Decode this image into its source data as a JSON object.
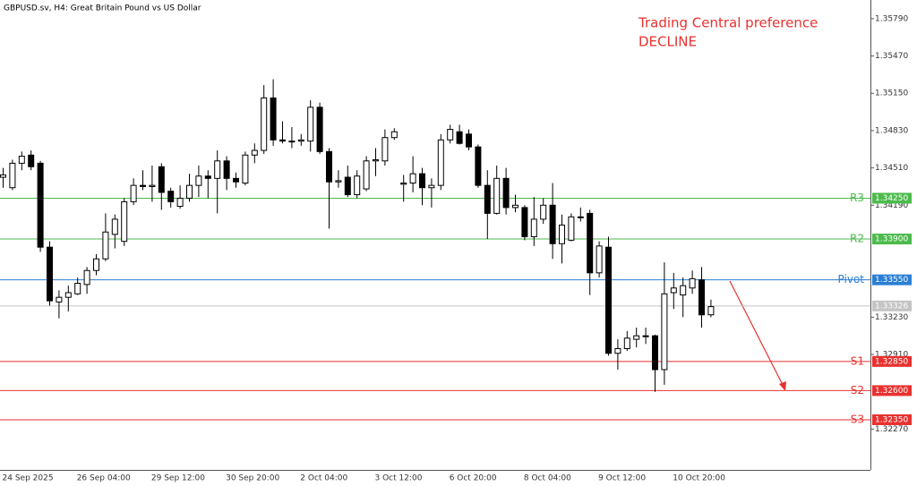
{
  "chart_data": {
    "type": "candlestick",
    "title": "GBPUSD.sv, H4:  Great Britain Pound vs US Dollar",
    "annotation": [
      "Trading Central preference",
      "DECLINE"
    ],
    "annotation_color": "#e8312f",
    "up_color": "#ffffff",
    "down_color": "#000000",
    "categories": [
      "24 Sep 2025",
      null,
      null,
      null,
      null,
      null,
      null,
      null,
      "26 Sep 04:00",
      null,
      null,
      null,
      null,
      null,
      null,
      null,
      "29 Sep 12:00",
      null,
      null,
      null,
      null,
      null,
      null,
      null,
      "30 Sep 20:00",
      null,
      null,
      null,
      null,
      null,
      null,
      null,
      "2 Oct 04:00",
      null,
      null,
      null,
      null,
      null,
      null,
      null,
      "3 Oct 12:00",
      null,
      null,
      null,
      null,
      null,
      null,
      null,
      "6 Oct 20:00",
      null,
      null,
      null,
      null,
      null,
      null,
      null,
      "8 Oct 04:00",
      null,
      null,
      null,
      null,
      null,
      null,
      null,
      "9 Oct 12:00",
      null,
      null,
      null,
      null,
      null,
      null,
      null,
      "10 Oct 20:00",
      null,
      null,
      null,
      null
    ],
    "open": [
      1.3443,
      1.3434,
      1.3455,
      1.3462,
      1.3455,
      1.3383,
      1.3336,
      1.334,
      1.3343,
      1.3351,
      1.3363,
      1.3373,
      1.3394,
      1.3388,
      1.3422,
      1.3436,
      1.3435,
      1.3452,
      1.3431,
      1.3418,
      1.3425,
      1.3436,
      1.3444,
      1.3442,
      1.3457,
      1.3442,
      1.3438,
      1.3462,
      1.3466,
      1.3511,
      1.3475,
      1.3474,
      1.3474,
      1.3474,
      1.3503,
      1.3465,
      1.3439,
      1.3443,
      1.3428,
      1.3433,
      1.3457,
      1.3457,
      1.3477,
      1.3437,
      1.3438,
      1.3446,
      1.3434,
      1.3436,
      1.3475,
      1.3482,
      1.348,
      1.3469,
      1.3436,
      1.3412,
      1.3442,
      1.3417,
      1.3417,
      1.3392,
      1.3407,
      1.3419,
      1.3386,
      1.3389,
      1.3409,
      1.3412,
      1.3361,
      1.3383,
      1.3292,
      1.3296,
      1.3304,
      1.3307,
      1.3307,
      1.3278,
      1.3344,
      1.3342,
      1.3348,
      1.3355,
      1.3325
    ],
    "high": [
      1.3451,
      1.3458,
      1.3465,
      1.3466,
      1.3457,
      1.3388,
      1.3346,
      1.335,
      1.3357,
      1.3366,
      1.3377,
      1.3412,
      1.3411,
      1.3425,
      1.3442,
      1.3449,
      1.3453,
      1.3455,
      1.3434,
      1.3436,
      1.3446,
      1.3453,
      1.3449,
      1.3466,
      1.3461,
      1.3447,
      1.3465,
      1.3472,
      1.3522,
      1.3527,
      1.3491,
      1.3486,
      1.348,
      1.3509,
      1.3507,
      1.3468,
      1.3449,
      1.3453,
      1.3449,
      1.3461,
      1.3468,
      1.3484,
      1.3485,
      1.3445,
      1.3461,
      1.3451,
      1.3442,
      1.348,
      1.3488,
      1.3488,
      1.3484,
      1.3471,
      1.3449,
      1.3453,
      1.3451,
      1.3428,
      1.3419,
      1.3426,
      1.3425,
      1.3438,
      1.3411,
      1.3412,
      1.3417,
      1.3415,
      1.3388,
      1.3392,
      1.3304,
      1.3311,
      1.3314,
      1.3314,
      1.3308,
      1.337,
      1.3361,
      1.3357,
      1.3363,
      1.3366,
      1.3338
    ],
    "low": [
      1.3434,
      1.3432,
      1.3449,
      1.3449,
      1.3379,
      1.3333,
      1.3322,
      1.3328,
      1.3342,
      1.3343,
      1.3359,
      1.3371,
      1.3382,
      1.3384,
      1.3419,
      1.3432,
      1.3422,
      1.3415,
      1.3417,
      1.3416,
      1.3422,
      1.3426,
      1.3425,
      1.3412,
      1.3432,
      1.3434,
      1.3436,
      1.3455,
      1.3463,
      1.347,
      1.3472,
      1.3468,
      1.347,
      1.3465,
      1.3463,
      1.3399,
      1.3434,
      1.3426,
      1.3425,
      1.3431,
      1.3444,
      1.3453,
      1.3475,
      1.3422,
      1.343,
      1.3419,
      1.3417,
      1.3432,
      1.3472,
      1.3471,
      1.3466,
      1.3434,
      1.339,
      1.3411,
      1.3411,
      1.3413,
      1.3389,
      1.3384,
      1.3403,
      1.3373,
      1.3369,
      1.3388,
      1.3405,
      1.3342,
      1.3357,
      1.329,
      1.3278,
      1.3294,
      1.3297,
      1.33,
      1.3259,
      1.3265,
      1.333,
      1.3323,
      1.3343,
      1.3314,
      1.3323
    ],
    "close": [
      1.3445,
      1.3455,
      1.3461,
      1.3452,
      1.3383,
      1.3337,
      1.334,
      1.3344,
      1.3352,
      1.3363,
      1.3373,
      1.3396,
      1.3407,
      1.3422,
      1.3436,
      1.3435,
      1.3436,
      1.343,
      1.3422,
      1.3425,
      1.3436,
      1.3444,
      1.3442,
      1.3457,
      1.3442,
      1.3439,
      1.3462,
      1.3466,
      1.3511,
      1.3475,
      1.3474,
      1.3474,
      1.3475,
      1.3503,
      1.3465,
      1.3439,
      1.344,
      1.3428,
      1.3444,
      1.3457,
      1.3458,
      1.3477,
      1.3482,
      1.3438,
      1.3446,
      1.3434,
      1.3436,
      1.3475,
      1.3484,
      1.3472,
      1.3469,
      1.3436,
      1.3412,
      1.3442,
      1.3417,
      1.3419,
      1.3392,
      1.3407,
      1.3419,
      1.3386,
      1.3402,
      1.3409,
      1.3409,
      1.3361,
      1.3384,
      1.3292,
      1.3296,
      1.3305,
      1.3307,
      1.3307,
      1.3278,
      1.3343,
      1.3348,
      1.335,
      1.3356,
      1.3325,
      1.3332
    ],
    "ylim": [
      1.3192,
      1.3595
    ],
    "yticks": [
      {
        "value": 1.3579,
        "label": "1.35790"
      },
      {
        "value": 1.3547,
        "label": "1.35470"
      },
      {
        "value": 1.3515,
        "label": "1.35150"
      },
      {
        "value": 1.3483,
        "label": "1.34830"
      },
      {
        "value": 1.3451,
        "label": "1.34510"
      },
      {
        "value": 1.3419,
        "label": "1.34190"
      },
      {
        "value": 1.3323,
        "label": "1.33230"
      },
      {
        "value": 1.3291,
        "label": "1.32910"
      },
      {
        "value": 1.3227,
        "label": "1.32270"
      }
    ],
    "levels": [
      {
        "name": "R3",
        "value": 1.3425,
        "label": "1.34250",
        "color": "#4cbb4c"
      },
      {
        "name": "R2",
        "value": 1.339,
        "label": "1.33900",
        "color": "#4cbb4c"
      },
      {
        "name": "Pivot",
        "value": 1.3355,
        "label": "1.33550",
        "color": "#2a7fd4"
      },
      {
        "name": "S1",
        "value": 1.3285,
        "label": "1.32850",
        "color": "#e8312f"
      },
      {
        "name": "S2",
        "value": 1.326,
        "label": "1.32600",
        "color": "#e8312f"
      },
      {
        "name": "S3",
        "value": 1.3235,
        "label": "1.32350",
        "color": "#e8312f"
      }
    ],
    "current_price": {
      "value": 1.33326,
      "label": "1.33326",
      "color": "#c4c4c4"
    }
  }
}
